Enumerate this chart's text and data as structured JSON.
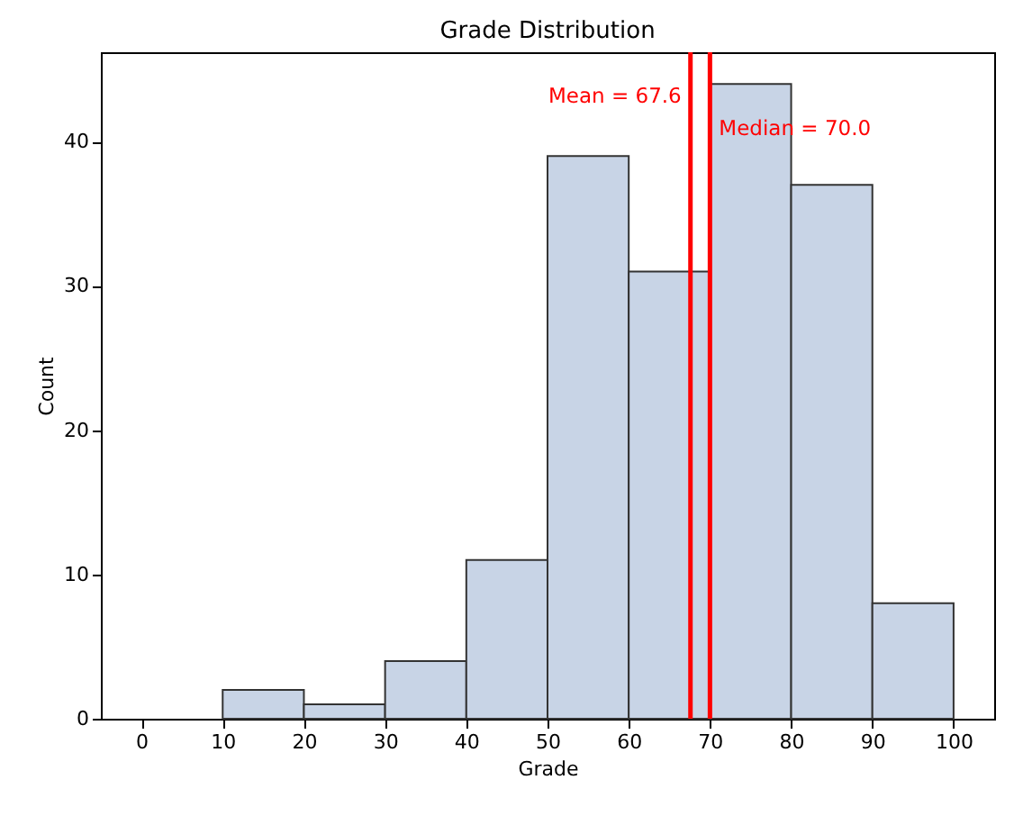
{
  "chart_data": {
    "type": "histogram",
    "title": "Grade Distribution",
    "xlabel": "Grade",
    "ylabel": "Count",
    "bins": [
      0,
      10,
      20,
      30,
      40,
      50,
      60,
      70,
      80,
      90,
      100
    ],
    "values": [
      0,
      2,
      1,
      4,
      11,
      39,
      31,
      44,
      37,
      8
    ],
    "color": "#c8d4e6",
    "xlim": [
      -5,
      105
    ],
    "xticks": [
      0,
      10,
      20,
      30,
      40,
      50,
      60,
      70,
      80,
      90,
      100
    ],
    "ylim": [
      0,
      46.2
    ],
    "yticks": [
      0,
      10,
      20,
      30,
      40
    ],
    "grid": false,
    "ref_lines": [
      {
        "axis": "x",
        "value": 67.6,
        "label": "Mean = 67.6",
        "color": "#ff0000",
        "line_style": "solid"
      },
      {
        "axis": "x",
        "value": 70.0,
        "label": "Median = 70.0",
        "color": "#ff0000",
        "line_style": "solid"
      }
    ]
  }
}
